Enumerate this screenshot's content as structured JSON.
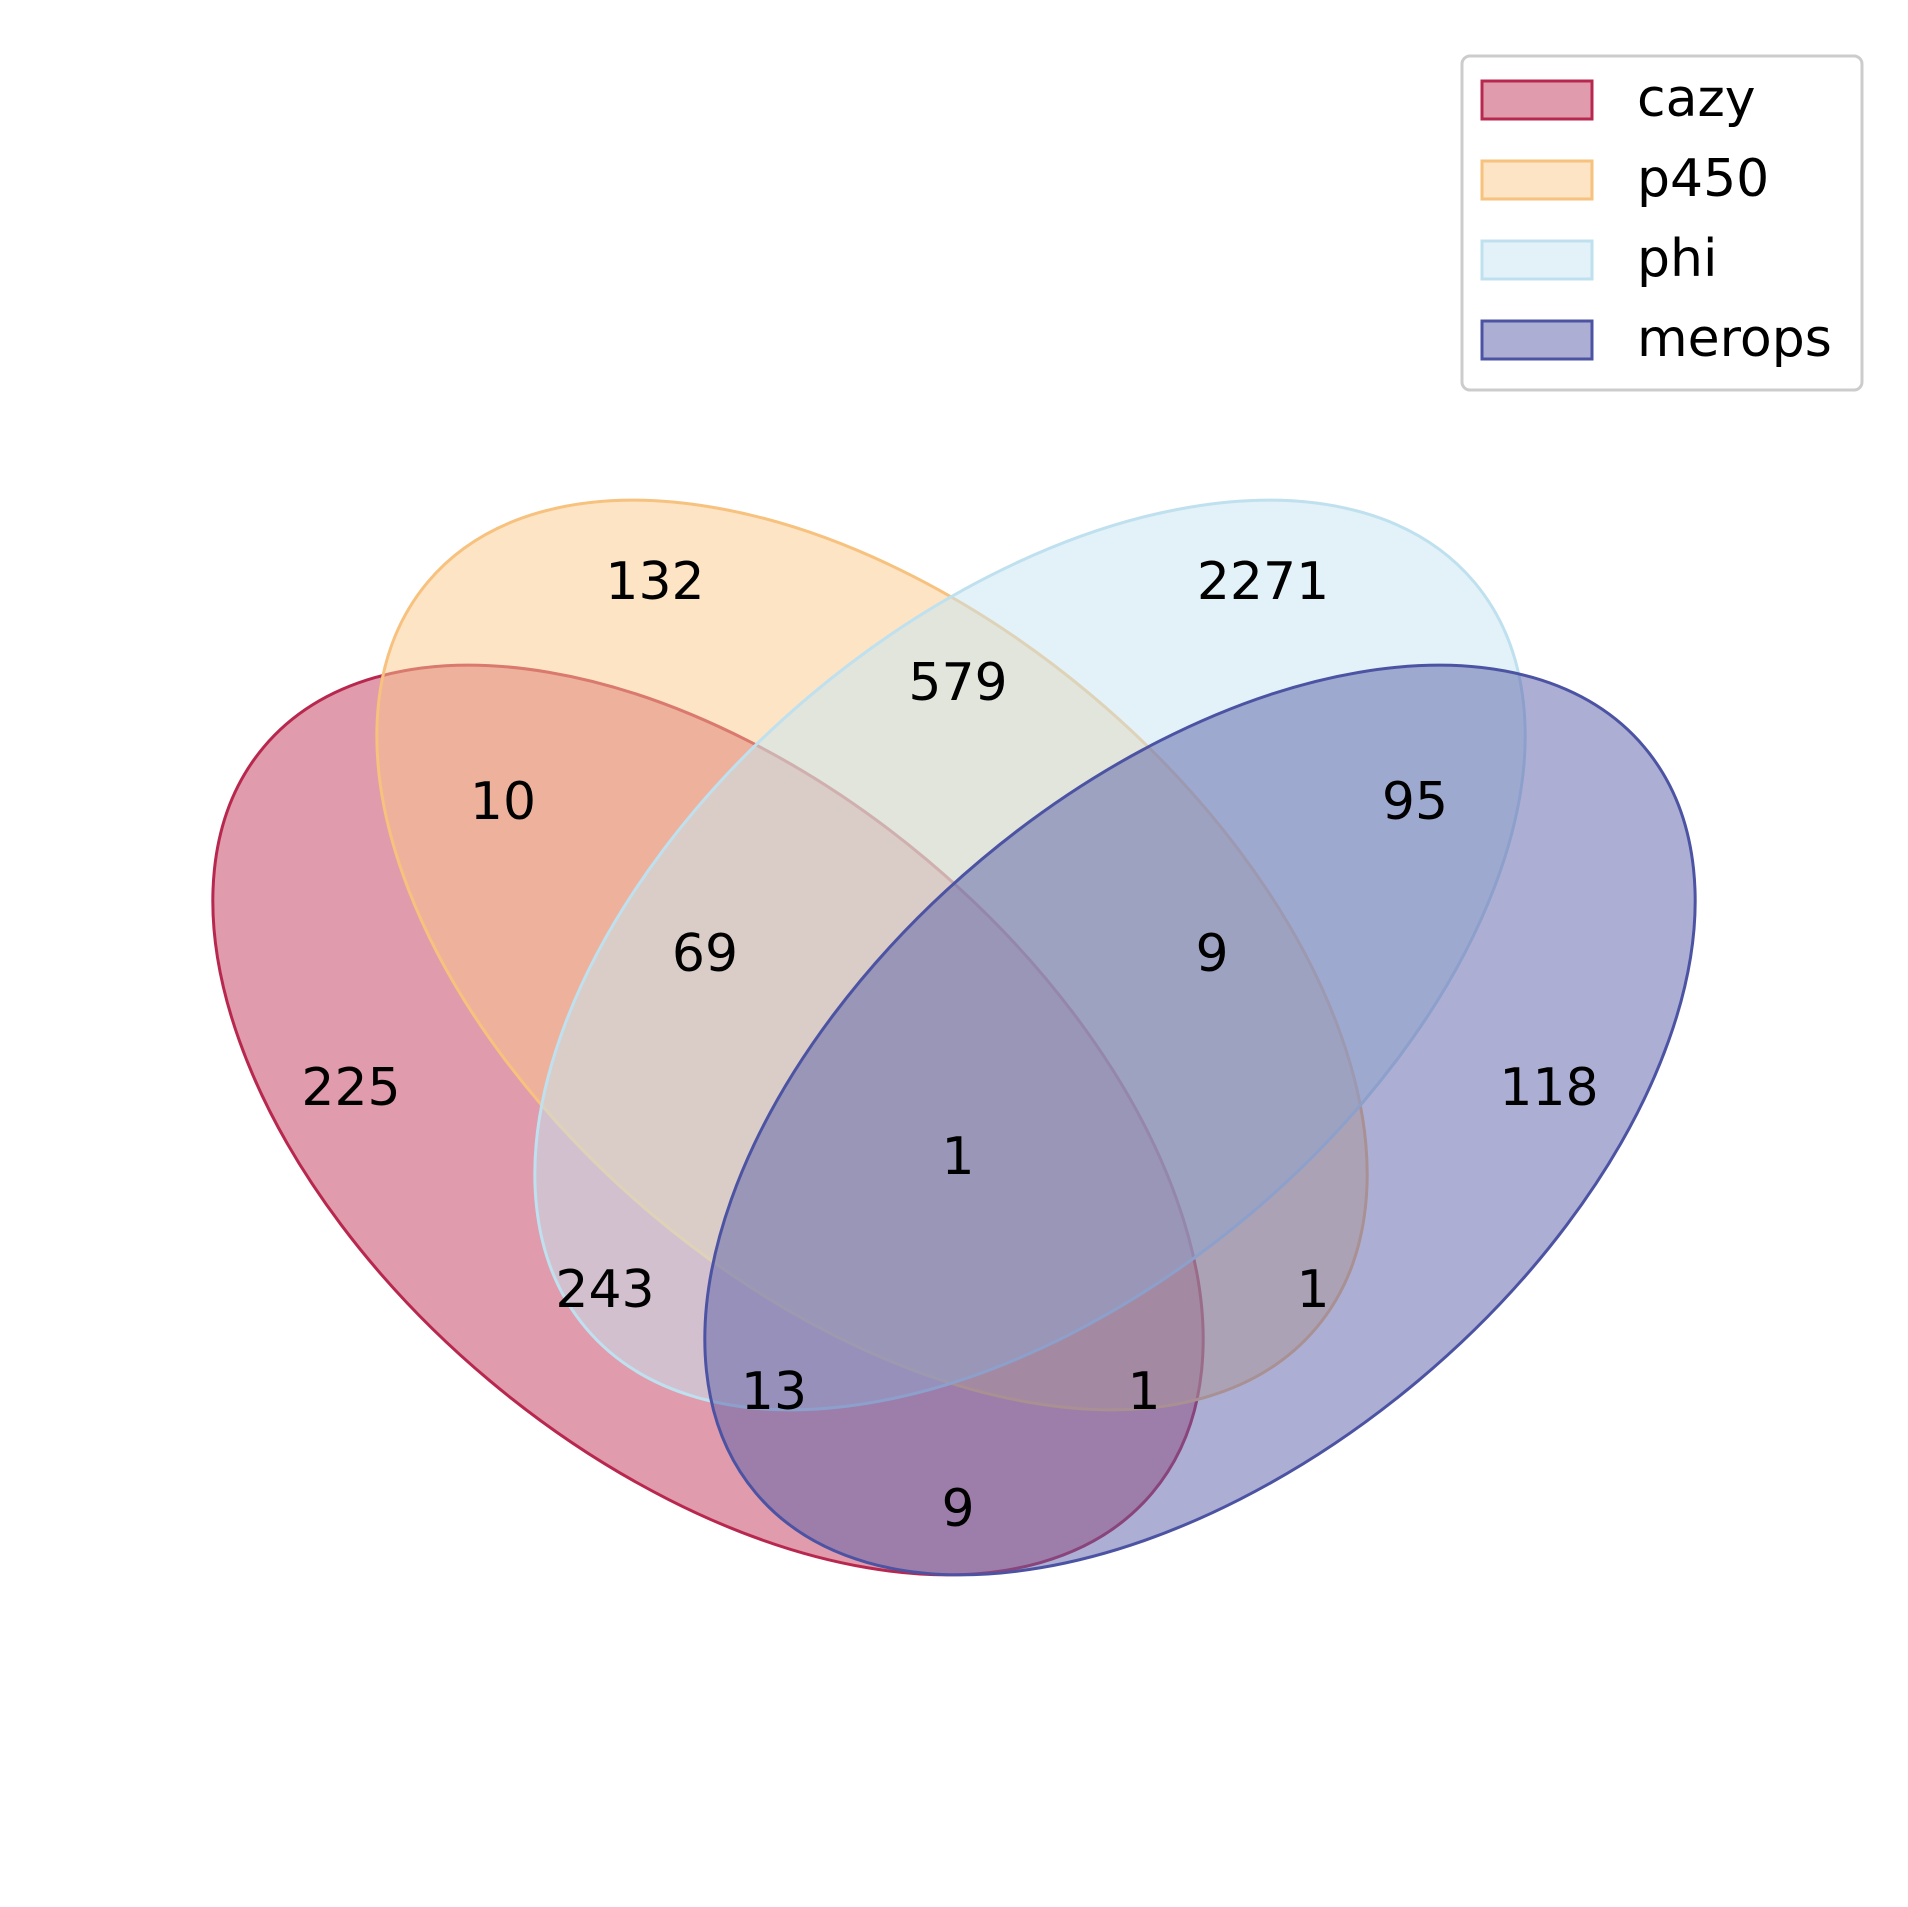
{
  "sets": [
    {
      "id": "cazy",
      "name": "cazy",
      "fill": "#c1375a",
      "fill_opacity": 0.5,
      "stroke": "#b8284e"
    },
    {
      "id": "p450",
      "name": "p450",
      "fill": "#fbc98b",
      "fill_opacity": 0.5,
      "stroke": "#f7c17e"
    },
    {
      "id": "phi",
      "name": "phi",
      "fill": "#c6e6f1",
      "fill_opacity": 0.5,
      "stroke": "#bfe0ee"
    },
    {
      "id": "merops",
      "name": "merops",
      "fill": "#5a5fa8",
      "fill_opacity": 0.5,
      "stroke": "#4c53a3"
    }
  ],
  "regions": [
    {
      "sets": [
        "p450"
      ],
      "value": "132"
    },
    {
      "sets": [
        "phi"
      ],
      "value": "2271"
    },
    {
      "sets": [
        "p450",
        "phi"
      ],
      "value": "579"
    },
    {
      "sets": [
        "cazy",
        "p450"
      ],
      "value": "10"
    },
    {
      "sets": [
        "phi",
        "merops"
      ],
      "value": "95"
    },
    {
      "sets": [
        "cazy",
        "p450",
        "phi"
      ],
      "value": "69"
    },
    {
      "sets": [
        "p450",
        "phi",
        "merops"
      ],
      "value": "9"
    },
    {
      "sets": [
        "cazy"
      ],
      "value": "225"
    },
    {
      "sets": [
        "merops"
      ],
      "value": "118"
    },
    {
      "sets": [
        "cazy",
        "p450",
        "phi",
        "merops"
      ],
      "value": "1"
    },
    {
      "sets": [
        "cazy",
        "phi"
      ],
      "value": "243"
    },
    {
      "sets": [
        "p450",
        "merops"
      ],
      "value": "1"
    },
    {
      "sets": [
        "cazy",
        "phi",
        "merops"
      ],
      "value": "13"
    },
    {
      "sets": [
        "cazy",
        "p450",
        "merops"
      ],
      "value": "1"
    },
    {
      "sets": [
        "cazy",
        "merops"
      ],
      "value": "9"
    }
  ],
  "legend": {
    "position": "top-right",
    "items": [
      "cazy",
      "p450",
      "phi",
      "merops"
    ]
  }
}
